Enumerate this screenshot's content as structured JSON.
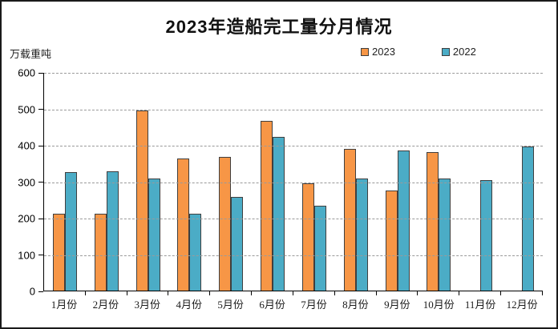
{
  "title": "2023年造船完工量分月情况",
  "y_unit_label": "万载重吨",
  "legend": [
    {
      "label": "2023",
      "color": "#F79646"
    },
    {
      "label": "2022",
      "color": "#4BACC6"
    }
  ],
  "colors": {
    "bar_border": "#3F3F3F",
    "axis": "#000000",
    "gridline": "#9A9A9A",
    "background": "#FFFFFF",
    "title_text": "#111111"
  },
  "chart_data": {
    "type": "bar",
    "title": "2023年造船完工量分月情况",
    "xlabel": "",
    "ylabel": "万载重吨",
    "categories": [
      "1月份",
      "2月份",
      "3月份",
      "4月份",
      "5月份",
      "6月份",
      "7月份",
      "8月份",
      "9月份",
      "10月份",
      "11月份",
      "12月份"
    ],
    "series": [
      {
        "name": "2023",
        "color": "#F79646",
        "values": [
          210,
          211,
          494,
          363,
          367,
          465,
          295,
          389,
          275,
          380,
          null,
          null
        ]
      },
      {
        "name": "2022",
        "color": "#4BACC6",
        "values": [
          326,
          328,
          307,
          210,
          257,
          421,
          234,
          308,
          385,
          307,
          303,
          396
        ]
      }
    ],
    "ylim": [
      0,
      600
    ],
    "ytick_step": 100,
    "grid": true,
    "legend_position": "top-right"
  }
}
